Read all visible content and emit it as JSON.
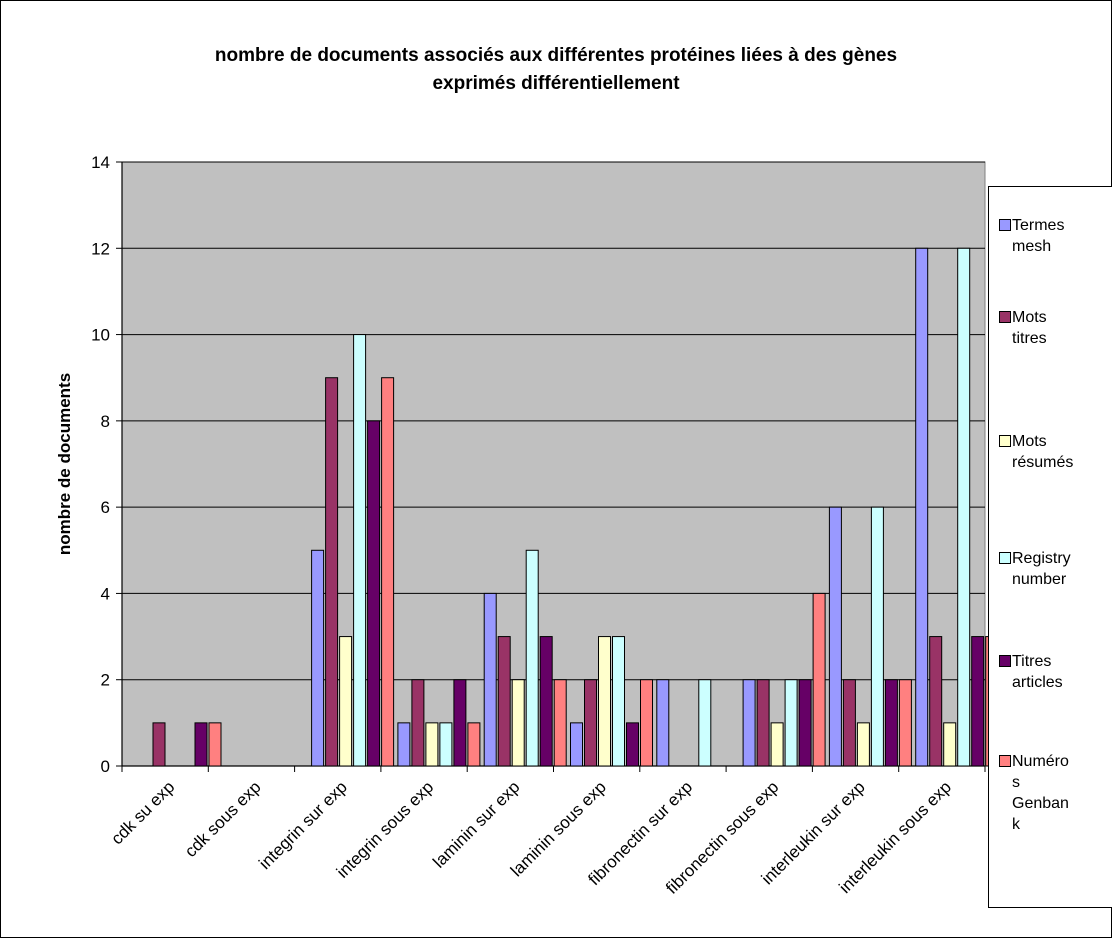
{
  "chart_data": {
    "type": "bar",
    "title_lines": [
      "nombre de documents associés aux différentes protéines liées à des gènes",
      "exprimés différentiellement"
    ],
    "ylabel": "nombre de documents",
    "xlabel": "",
    "ylim": [
      0,
      14
    ],
    "yticks": [
      0,
      2,
      4,
      6,
      8,
      10,
      12,
      14
    ],
    "grid": true,
    "legend_position": "right",
    "categories": [
      "cdk su exp",
      "cdk sous exp",
      "integrin sur exp",
      "integrin sous exp",
      "laminin sur exp",
      "laminin sous exp",
      "fibronectin sur exp",
      "fibronectin sous exp",
      "interleukin sur exp",
      "interleukin sous exp"
    ],
    "series": [
      {
        "name": "Termes mesh",
        "legend_lines": [
          "Termes",
          "mesh"
        ],
        "color": "#9999ff",
        "values": [
          0,
          0,
          5,
          1,
          4,
          1,
          2,
          2,
          6,
          12
        ]
      },
      {
        "name": "Mots titres",
        "legend_lines": [
          "Mots",
          "titres"
        ],
        "color": "#993366",
        "values": [
          1,
          0,
          9,
          2,
          3,
          2,
          0,
          2,
          2,
          3
        ]
      },
      {
        "name": "Mots résumés",
        "legend_lines": [
          "Mots",
          "résumés"
        ],
        "color": "#ffffcc",
        "values": [
          0,
          0,
          3,
          1,
          2,
          3,
          0,
          1,
          1,
          1
        ]
      },
      {
        "name": "Registry number",
        "legend_lines": [
          "Registry",
          "number"
        ],
        "color": "#ccffff",
        "values": [
          0,
          0,
          10,
          1,
          5,
          3,
          2,
          2,
          6,
          12
        ]
      },
      {
        "name": "Titres articles",
        "legend_lines": [
          "Titres",
          "articles"
        ],
        "color": "#660066",
        "values": [
          1,
          0,
          8,
          2,
          3,
          1,
          0,
          2,
          2,
          3
        ]
      },
      {
        "name": "Numéros Genbank",
        "legend_lines": [
          "Numéro",
          "s",
          "Genban",
          "k"
        ],
        "color": "#ff8080",
        "values": [
          1,
          0,
          9,
          1,
          2,
          2,
          0,
          4,
          2,
          3
        ]
      }
    ],
    "plot_background": "#c0c0c0"
  }
}
